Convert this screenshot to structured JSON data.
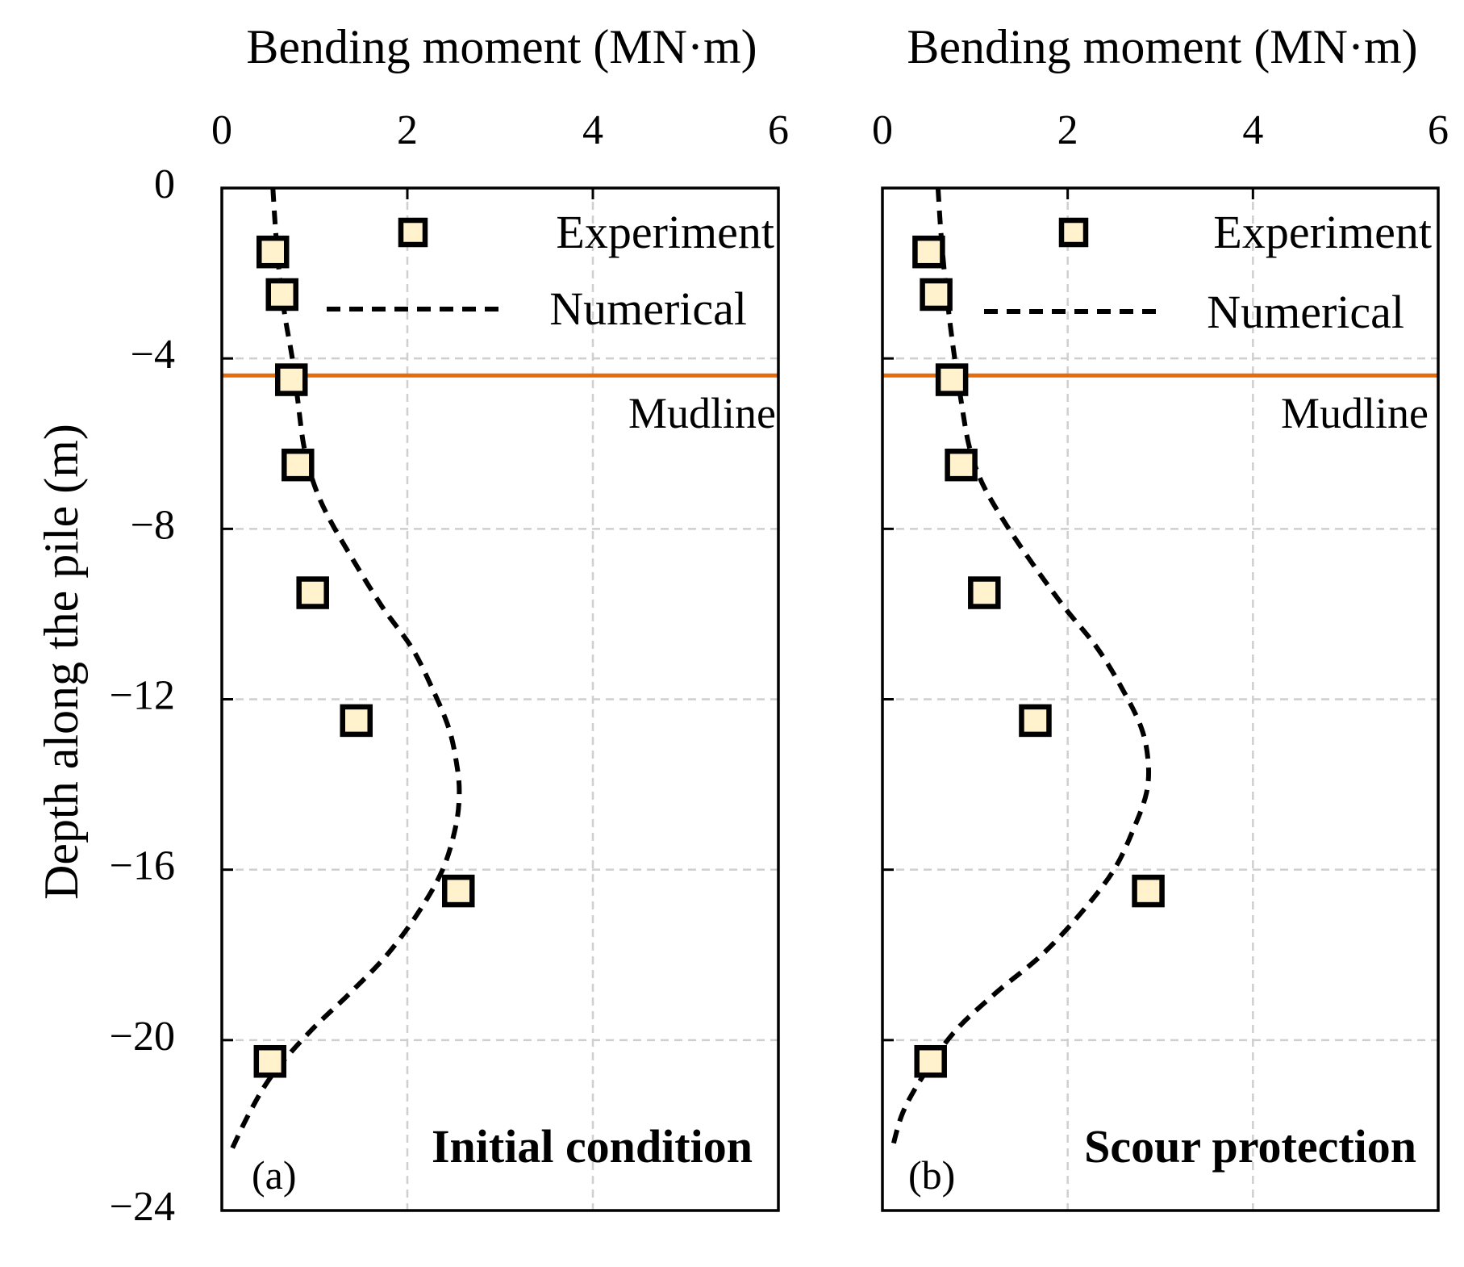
{
  "figure": {
    "y_axis_title": "Depth along the pile (m)",
    "legend": {
      "experiment": "Experiment",
      "numerical": "Numerical"
    },
    "mudline_label": "Mudline",
    "colors": {
      "mudline": "#E46C0A",
      "condition_label": "#E00000",
      "marker_fill": "#FFF2CC",
      "marker_edge": "#000000",
      "numerical_line": "#000000",
      "grid": "#CFCFCF"
    }
  },
  "chart_data": [
    {
      "type": "scatter",
      "panel_label": "(a)",
      "condition": "Initial condition",
      "xlabel": "Bending moment (MN·m)",
      "ylabel": "Depth along the pile (m)",
      "xlim": [
        0,
        6
      ],
      "ylim": [
        -24,
        0
      ],
      "xticks": [
        0,
        2,
        4,
        6
      ],
      "yticks": [
        0,
        -4,
        -8,
        -12,
        -16,
        -20,
        -24
      ],
      "ytick_labels": [
        "0",
        "−4",
        "−8",
        "−12",
        "−16",
        "−20",
        "−24"
      ],
      "x_axis_position": "top",
      "grid": true,
      "legend_position": "top-right",
      "mudline_depth": -4.4,
      "series": [
        {
          "name": "Experiment",
          "marker": "square",
          "x": [
            0.55,
            0.65,
            0.75,
            0.82,
            0.98,
            1.45,
            2.55,
            0.52
          ],
          "y": [
            -1.5,
            -2.5,
            -4.5,
            -6.5,
            -9.5,
            -12.5,
            -16.5,
            -20.5
          ]
        },
        {
          "name": "Numerical",
          "style": "dashed",
          "x": [
            0.55,
            0.58,
            0.62,
            0.68,
            0.76,
            0.82,
            0.88,
            0.97,
            1.12,
            1.38,
            1.72,
            2.05,
            2.28,
            2.45,
            2.53,
            2.56,
            2.52,
            2.38,
            2.12,
            1.78,
            1.38,
            0.95,
            0.55,
            0.3,
            0.1
          ],
          "y": [
            0,
            -1,
            -2,
            -3,
            -4,
            -5,
            -6,
            -6.8,
            -7.6,
            -8.6,
            -9.8,
            -10.8,
            -11.8,
            -12.7,
            -13.5,
            -14.2,
            -15,
            -16,
            -17,
            -18,
            -18.9,
            -19.8,
            -20.8,
            -21.7,
            -22.6
          ]
        }
      ]
    },
    {
      "type": "scatter",
      "panel_label": "(b)",
      "condition": "Scour protection",
      "xlabel": "Bending moment (MN·m)",
      "ylabel": "",
      "xlim": [
        0,
        6
      ],
      "ylim": [
        -24,
        0
      ],
      "xticks": [
        0,
        2,
        4,
        6
      ],
      "yticks": [
        0,
        -4,
        -8,
        -12,
        -16,
        -20,
        -24
      ],
      "x_axis_position": "top",
      "grid": true,
      "legend_position": "top-right",
      "mudline_depth": -4.4,
      "series": [
        {
          "name": "Experiment",
          "marker": "square",
          "x": [
            0.5,
            0.58,
            0.75,
            0.85,
            1.1,
            1.65,
            2.87,
            0.52
          ],
          "y": [
            -1.5,
            -2.5,
            -4.5,
            -6.5,
            -9.5,
            -12.5,
            -16.5,
            -20.5
          ]
        },
        {
          "name": "Numerical",
          "style": "dashed",
          "x": [
            0.6,
            0.63,
            0.67,
            0.72,
            0.78,
            0.85,
            0.93,
            1.05,
            1.25,
            1.55,
            1.95,
            2.32,
            2.6,
            2.8,
            2.87,
            2.85,
            2.72,
            2.5,
            2.15,
            1.72,
            1.22,
            0.78,
            0.45,
            0.22,
            0.1
          ],
          "y": [
            0,
            -1,
            -2,
            -3,
            -4,
            -5,
            -6,
            -6.8,
            -7.6,
            -8.6,
            -9.8,
            -10.8,
            -11.8,
            -12.7,
            -13.5,
            -14.2,
            -15,
            -16,
            -17,
            -18,
            -18.9,
            -19.8,
            -20.8,
            -21.7,
            -22.6
          ]
        }
      ]
    }
  ]
}
